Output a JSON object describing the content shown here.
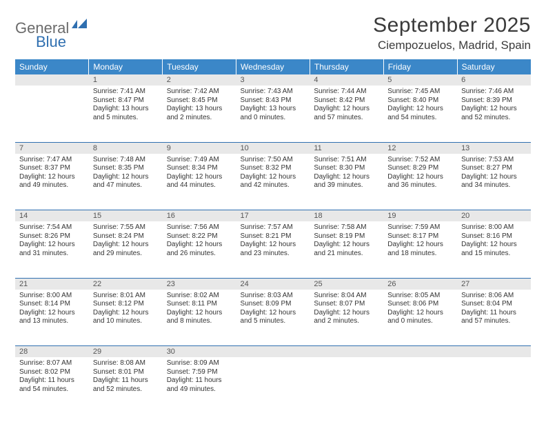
{
  "logo": {
    "word1": "General",
    "word2": "Blue"
  },
  "title": "September 2025",
  "location": "Ciempozuelos, Madrid, Spain",
  "colors": {
    "header_bg": "#3b87c8",
    "header_text": "#ffffff",
    "daynum_bg": "#e8e8e8",
    "rule": "#2f6fb0",
    "logo_gray": "#6b6b6b",
    "logo_blue": "#2f6fb0",
    "body_text": "#333333"
  },
  "daysOfWeek": [
    "Sunday",
    "Monday",
    "Tuesday",
    "Wednesday",
    "Thursday",
    "Friday",
    "Saturday"
  ],
  "weeks": [
    [
      null,
      {
        "n": "1",
        "sr": "7:41 AM",
        "ss": "8:47 PM",
        "dl": "13 hours and 5 minutes."
      },
      {
        "n": "2",
        "sr": "7:42 AM",
        "ss": "8:45 PM",
        "dl": "13 hours and 2 minutes."
      },
      {
        "n": "3",
        "sr": "7:43 AM",
        "ss": "8:43 PM",
        "dl": "13 hours and 0 minutes."
      },
      {
        "n": "4",
        "sr": "7:44 AM",
        "ss": "8:42 PM",
        "dl": "12 hours and 57 minutes."
      },
      {
        "n": "5",
        "sr": "7:45 AM",
        "ss": "8:40 PM",
        "dl": "12 hours and 54 minutes."
      },
      {
        "n": "6",
        "sr": "7:46 AM",
        "ss": "8:39 PM",
        "dl": "12 hours and 52 minutes."
      }
    ],
    [
      {
        "n": "7",
        "sr": "7:47 AM",
        "ss": "8:37 PM",
        "dl": "12 hours and 49 minutes."
      },
      {
        "n": "8",
        "sr": "7:48 AM",
        "ss": "8:35 PM",
        "dl": "12 hours and 47 minutes."
      },
      {
        "n": "9",
        "sr": "7:49 AM",
        "ss": "8:34 PM",
        "dl": "12 hours and 44 minutes."
      },
      {
        "n": "10",
        "sr": "7:50 AM",
        "ss": "8:32 PM",
        "dl": "12 hours and 42 minutes."
      },
      {
        "n": "11",
        "sr": "7:51 AM",
        "ss": "8:30 PM",
        "dl": "12 hours and 39 minutes."
      },
      {
        "n": "12",
        "sr": "7:52 AM",
        "ss": "8:29 PM",
        "dl": "12 hours and 36 minutes."
      },
      {
        "n": "13",
        "sr": "7:53 AM",
        "ss": "8:27 PM",
        "dl": "12 hours and 34 minutes."
      }
    ],
    [
      {
        "n": "14",
        "sr": "7:54 AM",
        "ss": "8:26 PM",
        "dl": "12 hours and 31 minutes."
      },
      {
        "n": "15",
        "sr": "7:55 AM",
        "ss": "8:24 PM",
        "dl": "12 hours and 29 minutes."
      },
      {
        "n": "16",
        "sr": "7:56 AM",
        "ss": "8:22 PM",
        "dl": "12 hours and 26 minutes."
      },
      {
        "n": "17",
        "sr": "7:57 AM",
        "ss": "8:21 PM",
        "dl": "12 hours and 23 minutes."
      },
      {
        "n": "18",
        "sr": "7:58 AM",
        "ss": "8:19 PM",
        "dl": "12 hours and 21 minutes."
      },
      {
        "n": "19",
        "sr": "7:59 AM",
        "ss": "8:17 PM",
        "dl": "12 hours and 18 minutes."
      },
      {
        "n": "20",
        "sr": "8:00 AM",
        "ss": "8:16 PM",
        "dl": "12 hours and 15 minutes."
      }
    ],
    [
      {
        "n": "21",
        "sr": "8:00 AM",
        "ss": "8:14 PM",
        "dl": "12 hours and 13 minutes."
      },
      {
        "n": "22",
        "sr": "8:01 AM",
        "ss": "8:12 PM",
        "dl": "12 hours and 10 minutes."
      },
      {
        "n": "23",
        "sr": "8:02 AM",
        "ss": "8:11 PM",
        "dl": "12 hours and 8 minutes."
      },
      {
        "n": "24",
        "sr": "8:03 AM",
        "ss": "8:09 PM",
        "dl": "12 hours and 5 minutes."
      },
      {
        "n": "25",
        "sr": "8:04 AM",
        "ss": "8:07 PM",
        "dl": "12 hours and 2 minutes."
      },
      {
        "n": "26",
        "sr": "8:05 AM",
        "ss": "8:06 PM",
        "dl": "12 hours and 0 minutes."
      },
      {
        "n": "27",
        "sr": "8:06 AM",
        "ss": "8:04 PM",
        "dl": "11 hours and 57 minutes."
      }
    ],
    [
      {
        "n": "28",
        "sr": "8:07 AM",
        "ss": "8:02 PM",
        "dl": "11 hours and 54 minutes."
      },
      {
        "n": "29",
        "sr": "8:08 AM",
        "ss": "8:01 PM",
        "dl": "11 hours and 52 minutes."
      },
      {
        "n": "30",
        "sr": "8:09 AM",
        "ss": "7:59 PM",
        "dl": "11 hours and 49 minutes."
      },
      null,
      null,
      null,
      null
    ]
  ],
  "labels": {
    "sunrise": "Sunrise:",
    "sunset": "Sunset:",
    "daylight": "Daylight:"
  }
}
